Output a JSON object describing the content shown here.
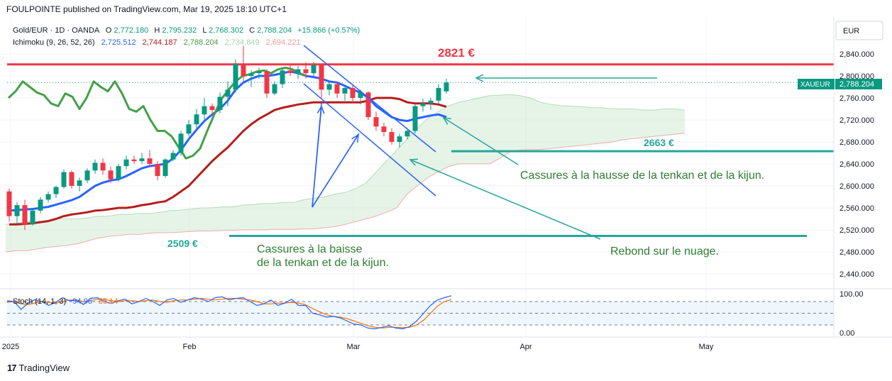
{
  "header": {
    "publisher_line": "FOULPOINTE published on TradingView.com, Mar 19, 2025 18:10 UTC+1"
  },
  "legend": {
    "symbol": "Gold/EUR · 1D · OANDA",
    "o_label": "O",
    "o_value": "2,772.180",
    "h_label": "H",
    "h_value": "2,795.232",
    "l_label": "L",
    "l_value": "2,768.302",
    "c_label": "C",
    "c_value": "2,788.204",
    "change": "+15.866 (+0.57%)",
    "ichimoku_label": "Ichimoku (9, 26, 52, 26)",
    "ichimoku_values": [
      "2,725.512",
      "2,744.187",
      "2,788.204",
      "2,734.849",
      "2,694.221"
    ],
    "stoch_label": "Stoch (14, 1, 3)",
    "stoch_values": [
      "94.96",
      "85.14"
    ]
  },
  "currency_button": "EUR",
  "price_axis": {
    "ticks": [
      "2,840.000",
      "2,800.000",
      "2,760.000",
      "2,720.000",
      "2,680.000",
      "2,640.000",
      "2,600.000",
      "2,560.000",
      "2,520.000",
      "2,480.000",
      "2,440.000"
    ],
    "symbol_tag": "XAUEUR",
    "last_price": "2,788.204"
  },
  "stoch_axis": {
    "ticks": [
      "100.00",
      "0.00"
    ]
  },
  "time_axis": {
    "ticks": [
      "2025",
      "Feb",
      "Mar",
      "Apr",
      "May"
    ]
  },
  "annotations": {
    "resistance_label": "2821 €",
    "support_high_label": "2663 €",
    "support_low_label": "2509 €",
    "note_upside": "Cassures à la hausse de la tenkan et de la kijun.",
    "note_downside_line1": "Cassures à la baisse",
    "note_downside_line2": "de la tenkan et de la kijun.",
    "note_cloud": "Rebond sur le nuage."
  },
  "footer": {
    "brand": "TradingView"
  },
  "colors": {
    "bull": "#089981",
    "bear": "#f23645",
    "tenkan": "#2962ff",
    "kijun": "#b71c1c",
    "chikou": "#43a047",
    "cloud": "#c8e6c9",
    "resistance": "#f23645",
    "support": "#26a69a",
    "annotation_green": "#2e7d32",
    "stoch_k": "#2962ff",
    "stoch_d": "#ff6d00"
  },
  "chart_data": {
    "type": "candlestick",
    "title": "Gold/EUR · 1D · OANDA",
    "price_range": [
      2420,
      2870
    ],
    "candles": [
      {
        "o": 2590,
        "h": 2595,
        "l": 2535,
        "c": 2545
      },
      {
        "o": 2545,
        "h": 2570,
        "l": 2530,
        "c": 2565
      },
      {
        "o": 2565,
        "h": 2575,
        "l": 2520,
        "c": 2530
      },
      {
        "o": 2530,
        "h": 2560,
        "l": 2528,
        "c": 2555
      },
      {
        "o": 2555,
        "h": 2580,
        "l": 2550,
        "c": 2575
      },
      {
        "o": 2575,
        "h": 2590,
        "l": 2570,
        "c": 2585
      },
      {
        "o": 2585,
        "h": 2600,
        "l": 2578,
        "c": 2598
      },
      {
        "o": 2598,
        "h": 2630,
        "l": 2595,
        "c": 2625
      },
      {
        "o": 2625,
        "h": 2628,
        "l": 2595,
        "c": 2600
      },
      {
        "o": 2600,
        "h": 2615,
        "l": 2590,
        "c": 2610
      },
      {
        "o": 2610,
        "h": 2632,
        "l": 2605,
        "c": 2628
      },
      {
        "o": 2628,
        "h": 2648,
        "l": 2622,
        "c": 2642
      },
      {
        "o": 2642,
        "h": 2650,
        "l": 2620,
        "c": 2628
      },
      {
        "o": 2628,
        "h": 2635,
        "l": 2605,
        "c": 2612
      },
      {
        "o": 2612,
        "h": 2640,
        "l": 2608,
        "c": 2636
      },
      {
        "o": 2636,
        "h": 2655,
        "l": 2630,
        "c": 2648
      },
      {
        "o": 2648,
        "h": 2655,
        "l": 2640,
        "c": 2645
      },
      {
        "o": 2645,
        "h": 2660,
        "l": 2640,
        "c": 2650
      },
      {
        "o": 2650,
        "h": 2665,
        "l": 2635,
        "c": 2640
      },
      {
        "o": 2640,
        "h": 2645,
        "l": 2610,
        "c": 2618
      },
      {
        "o": 2618,
        "h": 2650,
        "l": 2615,
        "c": 2648
      },
      {
        "o": 2648,
        "h": 2665,
        "l": 2645,
        "c": 2660
      },
      {
        "o": 2660,
        "h": 2700,
        "l": 2655,
        "c": 2695
      },
      {
        "o": 2695,
        "h": 2720,
        "l": 2690,
        "c": 2712
      },
      {
        "o": 2712,
        "h": 2740,
        "l": 2705,
        "c": 2730
      },
      {
        "o": 2730,
        "h": 2760,
        "l": 2720,
        "c": 2745
      },
      {
        "o": 2745,
        "h": 2750,
        "l": 2728,
        "c": 2738
      },
      {
        "o": 2738,
        "h": 2770,
        "l": 2732,
        "c": 2762
      },
      {
        "o": 2762,
        "h": 2790,
        "l": 2745,
        "c": 2775
      },
      {
        "o": 2775,
        "h": 2830,
        "l": 2770,
        "c": 2822
      },
      {
        "o": 2822,
        "h": 2855,
        "l": 2790,
        "c": 2800
      },
      {
        "o": 2800,
        "h": 2810,
        "l": 2780,
        "c": 2805
      },
      {
        "o": 2805,
        "h": 2815,
        "l": 2795,
        "c": 2808
      },
      {
        "o": 2808,
        "h": 2812,
        "l": 2760,
        "c": 2768
      },
      {
        "o": 2768,
        "h": 2790,
        "l": 2765,
        "c": 2785
      },
      {
        "o": 2785,
        "h": 2815,
        "l": 2778,
        "c": 2810
      },
      {
        "o": 2810,
        "h": 2820,
        "l": 2800,
        "c": 2805
      },
      {
        "o": 2805,
        "h": 2818,
        "l": 2795,
        "c": 2812
      },
      {
        "o": 2812,
        "h": 2825,
        "l": 2795,
        "c": 2805
      },
      {
        "o": 2805,
        "h": 2825,
        "l": 2800,
        "c": 2820
      },
      {
        "o": 2820,
        "h": 2822,
        "l": 2760,
        "c": 2775
      },
      {
        "o": 2775,
        "h": 2790,
        "l": 2765,
        "c": 2785
      },
      {
        "o": 2785,
        "h": 2790,
        "l": 2760,
        "c": 2768
      },
      {
        "o": 2768,
        "h": 2782,
        "l": 2755,
        "c": 2778
      },
      {
        "o": 2778,
        "h": 2785,
        "l": 2750,
        "c": 2760
      },
      {
        "o": 2760,
        "h": 2775,
        "l": 2748,
        "c": 2770
      },
      {
        "o": 2770,
        "h": 2772,
        "l": 2720,
        "c": 2725
      },
      {
        "o": 2725,
        "h": 2735,
        "l": 2700,
        "c": 2708
      },
      {
        "o": 2708,
        "h": 2715,
        "l": 2690,
        "c": 2698
      },
      {
        "o": 2698,
        "h": 2705,
        "l": 2675,
        "c": 2680
      },
      {
        "o": 2680,
        "h": 2695,
        "l": 2670,
        "c": 2690
      },
      {
        "o": 2690,
        "h": 2705,
        "l": 2685,
        "c": 2700
      },
      {
        "o": 2700,
        "h": 2750,
        "l": 2695,
        "c": 2745
      },
      {
        "o": 2745,
        "h": 2758,
        "l": 2735,
        "c": 2750
      },
      {
        "o": 2750,
        "h": 2760,
        "l": 2738,
        "c": 2755
      },
      {
        "o": 2755,
        "h": 2785,
        "l": 2750,
        "c": 2778
      },
      {
        "o": 2772,
        "h": 2795,
        "l": 2768,
        "c": 2788
      }
    ],
    "tenkan": [
      2555,
      2556,
      2557,
      2558,
      2560,
      2562,
      2566,
      2570,
      2574,
      2580,
      2590,
      2600,
      2606,
      2610,
      2612,
      2618,
      2625,
      2632,
      2636,
      2638,
      2640,
      2650,
      2665,
      2685,
      2702,
      2718,
      2730,
      2740,
      2755,
      2775,
      2788,
      2795,
      2800,
      2800,
      2802,
      2805,
      2808,
      2805,
      2800,
      2798,
      2795,
      2790,
      2788,
      2782,
      2775,
      2770,
      2760,
      2745,
      2735,
      2725,
      2720,
      2718,
      2722,
      2725,
      2728,
      2730,
      2725
    ],
    "kijun": [
      2530,
      2530,
      2531,
      2532,
      2534,
      2536,
      2540,
      2545,
      2548,
      2550,
      2552,
      2555,
      2556,
      2558,
      2560,
      2560,
      2562,
      2565,
      2567,
      2570,
      2572,
      2580,
      2590,
      2600,
      2615,
      2630,
      2645,
      2658,
      2670,
      2685,
      2700,
      2712,
      2722,
      2730,
      2738,
      2742,
      2745,
      2748,
      2750,
      2752,
      2752,
      2752,
      2752,
      2752,
      2752,
      2752,
      2755,
      2760,
      2760,
      2760,
      2758,
      2752,
      2750,
      2750,
      2750,
      2748,
      2744
    ],
    "chikou": [
      2760,
      2772,
      2790,
      2780,
      2770,
      2765,
      2750,
      2745,
      2768,
      2762,
      2740,
      2760,
      2790,
      2780,
      2772,
      2790,
      2768,
      2740,
      2735,
      2745,
      2720,
      2700,
      2700,
      2690,
      2670,
      2650,
      2655,
      2668,
      2700,
      2730,
      2758,
      2775,
      2790,
      2800,
      2803,
      2808,
      2810,
      2805,
      2812,
      2815,
      2812,
      2805,
      2800
    ],
    "cloud_top": [
      2530,
      2532,
      2535,
      2535,
      2537,
      2540,
      2540,
      2540,
      2542,
      2545,
      2545,
      2548,
      2548,
      2550,
      2550,
      2552,
      2555,
      2556,
      2558,
      2560,
      2560,
      2562,
      2562,
      2565,
      2566,
      2568,
      2568,
      2570,
      2570,
      2575,
      2578,
      2580,
      2585,
      2588,
      2595,
      2605,
      2625,
      2645,
      2665,
      2685,
      2705,
      2722,
      2735,
      2745,
      2752,
      2756,
      2760,
      2764,
      2765,
      2766,
      2764,
      2760,
      2752,
      2748,
      2746,
      2745,
      2744,
      2742,
      2742,
      2740,
      2740,
      2740,
      2738,
      2738,
      2740,
      2740,
      2738
    ],
    "cloud_bottom": [
      2480,
      2482,
      2482,
      2485,
      2488,
      2490,
      2492,
      2495,
      2500,
      2505,
      2508,
      2510,
      2512,
      2512,
      2514,
      2515,
      2515,
      2516,
      2517,
      2518,
      2518,
      2519,
      2519,
      2520,
      2520,
      2520,
      2521,
      2521,
      2521,
      2522,
      2522,
      2524,
      2526,
      2530,
      2535,
      2540,
      2545,
      2552,
      2560,
      2585,
      2600,
      2615,
      2625,
      2635,
      2640,
      2640,
      2640,
      2640,
      2650,
      2662,
      2665,
      2666,
      2666,
      2668,
      2670,
      2672,
      2674,
      2676,
      2678,
      2680,
      2684,
      2686,
      2688,
      2690,
      2692,
      2694,
      2696
    ],
    "stochastic": {
      "k": [
        82,
        80,
        60,
        75,
        85,
        80,
        70,
        78,
        90,
        82,
        84,
        72,
        88,
        90,
        80,
        75,
        82,
        86,
        74,
        80,
        88,
        80,
        70,
        84,
        88,
        78,
        84,
        90,
        86,
        80,
        90,
        92,
        84,
        88,
        90,
        80,
        70,
        74,
        84,
        70,
        76,
        86,
        70,
        70,
        50,
        46,
        40,
        42,
        38,
        30,
        22,
        20,
        12,
        10,
        14,
        18,
        12,
        10,
        16,
        30,
        50,
        70,
        84,
        90,
        94.96
      ],
      "d": [
        78,
        80,
        74,
        72,
        76,
        80,
        78,
        76,
        80,
        84,
        84,
        80,
        82,
        86,
        86,
        82,
        80,
        82,
        82,
        80,
        82,
        84,
        80,
        78,
        82,
        84,
        84,
        86,
        88,
        86,
        84,
        86,
        88,
        88,
        86,
        84,
        80,
        74,
        74,
        76,
        76,
        78,
        76,
        72,
        62,
        54,
        46,
        42,
        40,
        36,
        30,
        24,
        18,
        14,
        12,
        14,
        14,
        13,
        14,
        20,
        32,
        50,
        68,
        80,
        85.14
      ],
      "range": [
        0,
        100
      ],
      "bands": [
        80,
        50,
        20
      ]
    },
    "levels": {
      "resistance": 2821,
      "support_high": 2663,
      "support_low": 2509
    }
  }
}
